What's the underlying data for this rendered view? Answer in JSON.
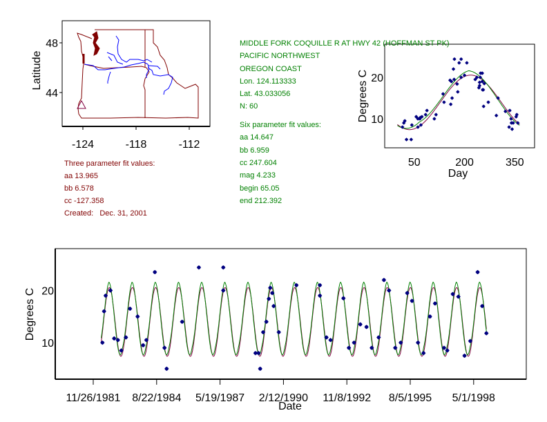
{
  "colors": {
    "map_border": "#800000",
    "rivers": "#0000ff",
    "site_marker": "#800040",
    "three_param_fit": "#800040",
    "six_param_fit": "#008000",
    "observations": "#000080",
    "three_param_text": "#800000",
    "station_text": "#008000"
  },
  "map": {
    "ylabel": "Latitude",
    "x_ticks": [
      "-124",
      "-118",
      "-112"
    ],
    "y_ticks": [
      "48",
      "44"
    ],
    "site_marker": "triangle"
  },
  "three_param": {
    "title": "Three parameter fit values:",
    "aa": "aa 13.965",
    "bb": "bb 6.578",
    "cc": "cc -127.358",
    "created": "Created:   Dec. 31, 2001"
  },
  "station": {
    "name": "MIDDLE FORK COQUILLE R AT HWY 42 (HOFFMAN ST PK)",
    "region": "PACIFIC NORTHWEST",
    "subregion": "OREGON COAST",
    "lon": "Lon. 124.113333",
    "lat": "Lat. 43.033056",
    "n": "N: 60"
  },
  "six_param": {
    "title": "Six parameter fit values:",
    "aa": "aa 14.647",
    "bb": "bb 6.959",
    "cc": "cc 247.604",
    "mag": "mag 4.233",
    "begin": "begin 65.05",
    "end": "end 212.392"
  },
  "chart_data": [
    {
      "type": "scatter",
      "xlabel": "Day",
      "ylabel": "Degrees C",
      "x_ticks": [
        "50",
        "200",
        "350"
      ],
      "y_ticks": [
        "10",
        "20"
      ],
      "xlim": [
        -38,
        409
      ],
      "ylim": [
        3,
        28
      ],
      "grid": false,
      "fits": {
        "three_param": {
          "aa": 13.965,
          "bb": 6.578,
          "cc": -127.358
        },
        "six_param": {
          "aa": 14.647,
          "bb": 6.959,
          "cc": 247.604,
          "mag": 4.233,
          "begin": 65.05,
          "end": 212.392
        }
      },
      "day": [
        110,
        136,
        161,
        237,
        295,
        354,
        43,
        115,
        180,
        300,
        22,
        73,
        207,
        359,
        27,
        271,
        170,
        190,
        190,
        333,
        15,
        41,
        88,
        139,
        178,
        200,
        232,
        254,
        335,
        248,
        253,
        253,
        356,
        56,
        259,
        345,
        61,
        159,
        257,
        340,
        84,
        167,
        247,
        345,
        67,
        169,
        245,
        339,
        61,
        163,
        243,
        19,
        70,
        157,
        245,
        342,
        68,
        184,
        256,
        322
      ],
      "temp": [
        10,
        16,
        19,
        20,
        10.8,
        10.5,
        8.5,
        11,
        16.5,
        15,
        9.5,
        10.5,
        23.5,
        9,
        5,
        14,
        24.4,
        24.4,
        20,
        8,
        8,
        5,
        12,
        14,
        18.4,
        20.5,
        19.5,
        17,
        12,
        21,
        21,
        19,
        11,
        10.5,
        18.5,
        9,
        10,
        13.5,
        13,
        9,
        11,
        22,
        20,
        9,
        10,
        19.5,
        18,
        10,
        8,
        15,
        17.5,
        9,
        8.5,
        19.3,
        18.8,
        7.5,
        10.3,
        23.5,
        17,
        11.8
      ]
    },
    {
      "type": "line",
      "xlabel": "Date",
      "ylabel": "Degrees C",
      "x_ticks": [
        "11/26/1981",
        "8/22/1984",
        "5/19/1987",
        "2/12/1990",
        "11/8/1992",
        "8/5/1995",
        "5/1/1998"
      ],
      "y_ticks": [
        "10",
        "20"
      ],
      "xlim": [
        "4/6/1980",
        "8/8/2000"
      ],
      "ylim": [
        3,
        28
      ],
      "grid": false,
      "fit_range": [
        "4/1/1982",
        "11/20/1998"
      ],
      "date": [
        "4/20/1982",
        "5/16/1982",
        "6/10/1982",
        "8/25/1982",
        "10/22/1982",
        "12/20/1982",
        "2/12/1983",
        "4/25/1983",
        "6/29/1983",
        "10/27/1983",
        "1/22/1984",
        "3/13/1984",
        "7/25/1984",
        "12/24/1984",
        "1/27/1985",
        "9/28/1985",
        "6/19/1986",
        "7/9/1987",
        "7/9/1987",
        "11/28/1988",
        "1/15/1989",
        "2/10/1989",
        "3/29/1989",
        "5/19/1989",
        "6/27/1989",
        "7/19/1989",
        "8/20/1989",
        "9/11/1989",
        "12/1/1989",
        "9/5/1990",
        "9/10/1991",
        "9/10/1991",
        "12/22/1991",
        "2/25/1992",
        "9/15/1992",
        "12/10/1992",
        "3/2/1993",
        "6/8/1993",
        "9/14/1993",
        "12/6/1993",
        "3/25/1994",
        "6/16/1994",
        "9/4/1994",
        "12/11/1994",
        "3/8/1995",
        "6/18/1995",
        "9/2/1995",
        "12/5/1995",
        "3/1/1996",
        "6/11/1996",
        "8/30/1996",
        "1/19/1997",
        "3/11/1997",
        "6/6/1997",
        "9/2/1997",
        "12/8/1997",
        "3/9/1998",
        "7/3/1998",
        "9/13/1998",
        "11/18/1998"
      ],
      "temp": [
        10,
        16,
        19,
        20,
        10.8,
        10.5,
        8.5,
        11,
        16.5,
        15,
        9.5,
        10.5,
        23.5,
        9,
        5,
        14,
        24.4,
        24.4,
        20,
        8,
        8,
        5,
        12,
        14,
        18.4,
        20.5,
        19.5,
        17,
        12,
        21,
        21,
        19,
        11,
        10.5,
        18.5,
        9,
        10,
        13.5,
        13,
        9,
        11,
        22,
        20,
        9,
        10,
        19.5,
        18,
        10,
        8,
        15,
        17.5,
        9,
        8.5,
        19.3,
        18.8,
        7.5,
        10.3,
        23.5,
        17,
        11.8
      ]
    }
  ]
}
